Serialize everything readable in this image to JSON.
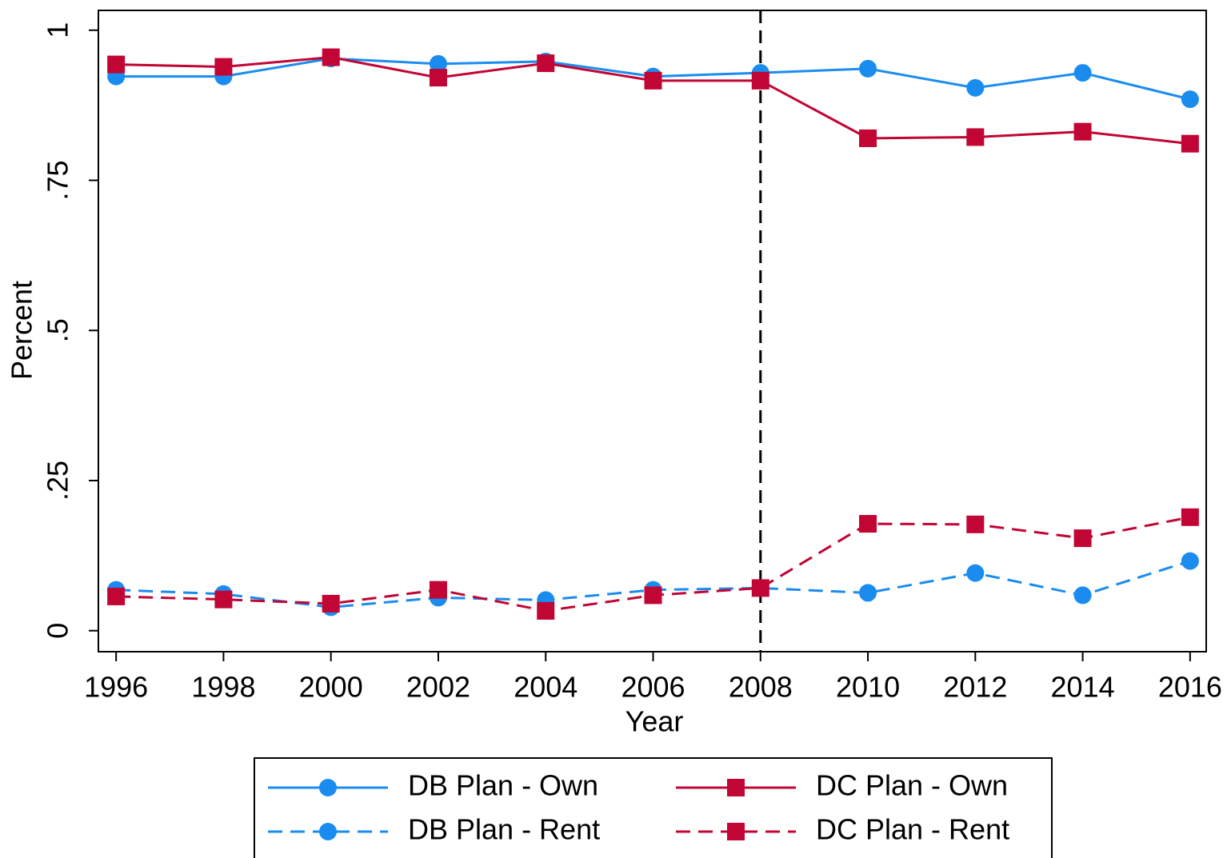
{
  "chart_data": {
    "type": "line",
    "x_label": "Year",
    "y_label": "Percent",
    "x": [
      1996,
      1998,
      2000,
      2002,
      2004,
      2006,
      2008,
      2010,
      2012,
      2014,
      2016
    ],
    "xlim": [
      1995.67,
      2016.3
    ],
    "xticks": [
      1996,
      1998,
      2000,
      2002,
      2004,
      2006,
      2008,
      2010,
      2012,
      2014,
      2016
    ],
    "ylim": [
      -0.035,
      1.033
    ],
    "yticks": [
      0,
      {
        "value": 0.25,
        "label": ".25"
      },
      {
        "value": 0.5,
        "label": ".5"
      },
      {
        "value": 0.75,
        "label": ".75"
      },
      1
    ],
    "vlines": [
      2008
    ],
    "legend": "bottom",
    "series": [
      {
        "name": "DB Plan - Own",
        "color": "#1a8cf0",
        "dash": false,
        "marker": "circle",
        "values": [
          0.923,
          0.923,
          0.953,
          0.944,
          0.948,
          0.923,
          0.929,
          0.936,
          0.904,
          0.929,
          0.885
        ]
      },
      {
        "name": "DC Plan - Own",
        "color": "#c10534",
        "dash": false,
        "marker": "square",
        "values": [
          0.943,
          0.939,
          0.955,
          0.921,
          0.945,
          0.916,
          0.916,
          0.82,
          0.822,
          0.831,
          0.811
        ]
      },
      {
        "name": "DB Plan - Rent",
        "color": "#1a8cf0",
        "dash": true,
        "marker": "circle",
        "values": [
          0.068,
          0.061,
          0.039,
          0.055,
          0.051,
          0.068,
          0.071,
          0.063,
          0.096,
          0.059,
          0.116
        ]
      },
      {
        "name": "DC Plan - Rent",
        "color": "#c10534",
        "dash": true,
        "marker": "square",
        "values": [
          0.057,
          0.052,
          0.045,
          0.068,
          0.033,
          0.059,
          0.071,
          0.178,
          0.177,
          0.154,
          0.189
        ]
      }
    ]
  }
}
